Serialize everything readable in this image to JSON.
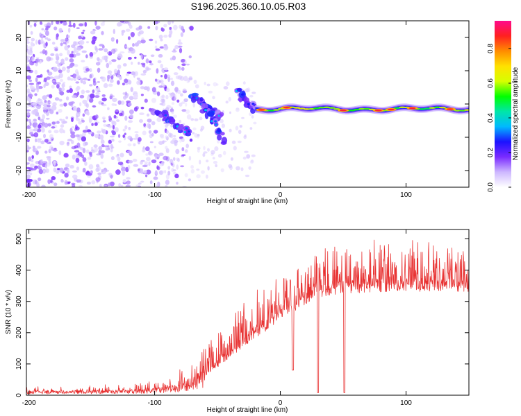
{
  "title": "S196.2025.360.10.05.R03",
  "colors": {
    "snr_line": "#e83232",
    "background": "#ffffff",
    "colormap": [
      "#ffffff",
      "#cdb7ff",
      "#7a2bff",
      "#1b12ff",
      "#00b9ff",
      "#00e6a8",
      "#00ff00",
      "#d6ff00",
      "#ffe100",
      "#ff8c00",
      "#ff2020",
      "#ff0a8c"
    ]
  },
  "chart_data": [
    {
      "type": "heatmap",
      "title": "",
      "xlabel": "Height of straight line (km)",
      "ylabel": "Frequency (Hz)",
      "xlim": [
        -202,
        150
      ],
      "ylim": [
        -25,
        25
      ],
      "xticks": [
        -200,
        -100,
        0,
        100
      ],
      "xtick_labels": [
        "-200",
        "-100",
        "0",
        "100"
      ],
      "yticks": [
        -20,
        -10,
        0,
        10,
        20
      ],
      "ytick_labels": [
        "-20",
        "-10",
        "0",
        "10",
        "20"
      ],
      "colorbar": {
        "label": "Normalized spectral amplitude",
        "range": [
          0,
          0.96
        ],
        "ticks": [
          0.0,
          0.2,
          0.4,
          0.6,
          0.8
        ],
        "tick_labels": [
          "0.0",
          "0.2",
          "0.4",
          "0.6",
          "0.8"
        ]
      },
      "features": {
        "noise_region_km": [
          -202,
          -90
        ],
        "coherent_signal_frequency_hz": -1.5,
        "coherent_signal_start_km": -20,
        "dispersed_branches": [
          {
            "x_start": -100,
            "x_end": -72,
            "f_start": -2,
            "f_end": -9
          },
          {
            "x_start": -70,
            "x_end": -48,
            "f_start": 3,
            "f_end": -4
          },
          {
            "x_start": -62,
            "x_end": -45,
            "f_start": 0,
            "f_end": -11
          },
          {
            "x_start": -35,
            "x_end": -20,
            "f_start": 4,
            "f_end": -2
          }
        ],
        "peak_amplitude_locations_km": [
          -15,
          5,
          50,
          78,
          88,
          105,
          135
        ]
      }
    },
    {
      "type": "line",
      "title": "",
      "xlabel": "Height of straight line (km)",
      "ylabel": "SNR (10 * v/v)",
      "xlim": [
        -202,
        150
      ],
      "ylim": [
        0,
        530
      ],
      "xticks": [
        -200,
        -100,
        0,
        100
      ],
      "xtick_labels": [
        "-200",
        "-100",
        "0",
        "100"
      ],
      "yticks": [
        0,
        100,
        200,
        300,
        400,
        500
      ],
      "ytick_labels": [
        "0",
        "100",
        "200",
        "300",
        "400",
        "500"
      ],
      "series": [
        {
          "name": "SNR",
          "x": [
            -202,
            -180,
            -160,
            -140,
            -120,
            -100,
            -90,
            -80,
            -70,
            -60,
            -50,
            -40,
            -30,
            -20,
            -10,
            0,
            10,
            20,
            30,
            40,
            60,
            80,
            100,
            120,
            140,
            150
          ],
          "base": [
            10,
            10,
            11,
            11,
            12,
            15,
            18,
            25,
            40,
            60,
            90,
            120,
            150,
            180,
            210,
            240,
            265,
            290,
            310,
            320,
            325,
            330,
            330,
            330,
            330,
            330
          ],
          "peak": [
            25,
            28,
            30,
            32,
            35,
            40,
            55,
            75,
            120,
            160,
            200,
            240,
            300,
            340,
            360,
            380,
            400,
            420,
            460,
            480,
            500,
            510,
            500,
            490,
            490,
            490
          ],
          "dropouts": [
            {
              "x": 10,
              "y": 80
            },
            {
              "x": 30,
              "y": 8
            },
            {
              "x": 51,
              "y": 8
            }
          ]
        }
      ]
    }
  ]
}
